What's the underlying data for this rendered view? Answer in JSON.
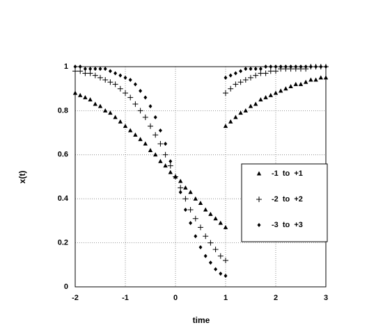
{
  "chart_data": {
    "type": "scatter",
    "xlabel": "time",
    "ylabel": "x(t)",
    "x": [
      -2,
      -1.9,
      -1.8,
      -1.7,
      -1.6,
      -1.5,
      -1.4,
      -1.3,
      -1.2,
      -1.1,
      -1,
      -0.9,
      -0.8,
      -0.7,
      -0.6,
      -0.5,
      -0.4,
      -0.3,
      -0.2,
      -0.1,
      0,
      0.1,
      0.2,
      0.3,
      0.4,
      0.5,
      0.6,
      0.7,
      0.8,
      0.9,
      1,
      1,
      1.1,
      1.2,
      1.3,
      1.4,
      1.5,
      1.6,
      1.7,
      1.8,
      1.9,
      2,
      2.1,
      2.2,
      2.3,
      2.4,
      2.5,
      2.6,
      2.7,
      2.8,
      2.9,
      3
    ],
    "series": [
      {
        "name": "-1  to  +1",
        "color": "#000000",
        "marker": "triangle",
        "values": [
          0.88,
          0.87,
          0.86,
          0.85,
          0.83,
          0.82,
          0.8,
          0.79,
          0.77,
          0.75,
          0.73,
          0.71,
          0.69,
          0.67,
          0.65,
          0.62,
          0.6,
          0.57,
          0.55,
          0.52,
          0.5,
          0.48,
          0.45,
          0.43,
          0.4,
          0.38,
          0.35,
          0.33,
          0.31,
          0.29,
          0.27,
          0.73,
          0.75,
          0.77,
          0.79,
          0.8,
          0.82,
          0.83,
          0.85,
          0.86,
          0.87,
          0.88,
          0.89,
          0.9,
          0.91,
          0.92,
          0.92,
          0.93,
          0.94,
          0.94,
          0.95,
          0.95
        ]
      },
      {
        "name": "-2  to  +2",
        "color": "#000000",
        "marker": "plus",
        "values": [
          0.98,
          0.98,
          0.97,
          0.97,
          0.96,
          0.95,
          0.94,
          0.93,
          0.92,
          0.9,
          0.88,
          0.86,
          0.83,
          0.8,
          0.77,
          0.73,
          0.69,
          0.65,
          0.6,
          0.55,
          0.5,
          0.45,
          0.4,
          0.35,
          0.31,
          0.27,
          0.23,
          0.2,
          0.17,
          0.14,
          0.12,
          0.88,
          0.9,
          0.92,
          0.93,
          0.94,
          0.95,
          0.96,
          0.97,
          0.97,
          0.98,
          0.98,
          0.99,
          0.99,
          0.99,
          0.99,
          0.99,
          0.99,
          1,
          1,
          1,
          1
        ]
      },
      {
        "name": "-3  to  +3",
        "color": "#000000",
        "marker": "diamond",
        "values": [
          1,
          1,
          0.99,
          0.99,
          0.99,
          0.99,
          0.99,
          0.98,
          0.97,
          0.96,
          0.95,
          0.94,
          0.92,
          0.89,
          0.86,
          0.82,
          0.77,
          0.71,
          0.65,
          0.57,
          0.5,
          0.43,
          0.35,
          0.29,
          0.23,
          0.18,
          0.14,
          0.11,
          0.08,
          0.06,
          0.05,
          0.95,
          0.96,
          0.97,
          0.98,
          0.99,
          0.99,
          0.99,
          0.99,
          1,
          1,
          1,
          1,
          1,
          1,
          1,
          1,
          1,
          1,
          1,
          1,
          1
        ]
      }
    ],
    "xlim": [
      -2,
      3
    ],
    "xticks": [
      -2,
      -1,
      0,
      1,
      2,
      3
    ],
    "ylim": [
      0,
      1
    ],
    "yticks": [
      0,
      0.2,
      0.4,
      0.6,
      0.8,
      1
    ],
    "grid": true,
    "legend": "right"
  }
}
